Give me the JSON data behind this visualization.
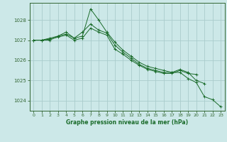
{
  "title": "Graphe pression niveau de la mer (hPa)",
  "bg_color": "#cce8e8",
  "grid_color": "#aacccc",
  "line_color": "#1a6b2a",
  "spine_color": "#336633",
  "xlim": [
    -0.5,
    23.5
  ],
  "ylim": [
    1023.5,
    1028.85
  ],
  "yticks": [
    1024,
    1025,
    1026,
    1027,
    1028
  ],
  "xticks": [
    0,
    1,
    2,
    3,
    4,
    5,
    6,
    7,
    8,
    9,
    10,
    11,
    12,
    13,
    14,
    15,
    16,
    17,
    18,
    19,
    20,
    21,
    22,
    23
  ],
  "series": [
    [
      1027.0,
      1027.0,
      1027.0,
      1027.2,
      1027.4,
      1027.1,
      1027.2,
      1028.55,
      1028.0,
      1027.4,
      1026.9,
      1026.5,
      1026.2,
      1025.9,
      1025.7,
      1025.6,
      1025.5,
      1025.4,
      1025.4,
      1025.1,
      1024.9,
      1024.2,
      1024.05,
      1023.7
    ],
    [
      1027.0,
      1027.0,
      1027.1,
      1027.2,
      1027.3,
      1027.1,
      1027.4,
      1027.8,
      1027.5,
      1027.35,
      1026.75,
      1026.4,
      1026.1,
      1025.8,
      1025.6,
      1025.5,
      1025.4,
      1025.4,
      1025.55,
      1025.4,
      1025.0,
      1024.85,
      null,
      null
    ],
    [
      1027.0,
      1027.0,
      1027.05,
      1027.15,
      1027.25,
      1027.0,
      1027.1,
      1027.6,
      1027.4,
      1027.25,
      1026.55,
      1026.3,
      1026.0,
      1025.75,
      1025.55,
      1025.45,
      1025.35,
      1025.35,
      1025.5,
      1025.35,
      1025.3,
      null,
      null,
      null
    ]
  ],
  "marker": "+"
}
